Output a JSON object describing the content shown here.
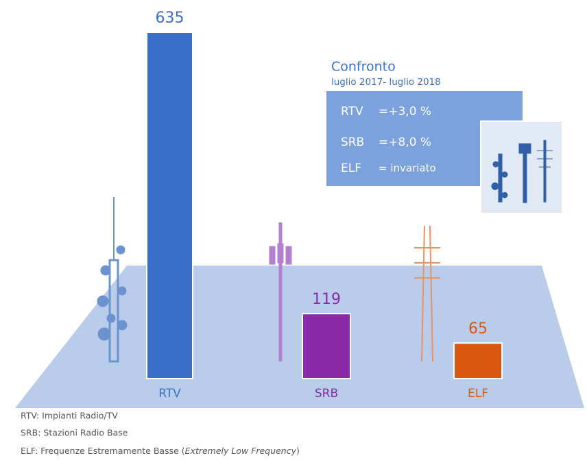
{
  "chart_data": {
    "type": "bar",
    "categories": [
      "RTV",
      "SRB",
      "ELF"
    ],
    "values": [
      635,
      119,
      65
    ],
    "colors": [
      "#3a6fc9",
      "#8a2aa8",
      "#d9560e"
    ]
  },
  "comparison": {
    "title": "Confronto",
    "subtitle": "luglio 2017- luglio 2018",
    "items": [
      {
        "label": "RTV",
        "value": "=+3,0 %"
      },
      {
        "label": "SRB",
        "value": "=+8,0 %"
      },
      {
        "label": "ELF",
        "value": "= invariato"
      }
    ]
  },
  "footnotes": [
    "RTV: Impianti Radio/TV",
    "SRB: Stazioni Radio Base",
    {
      "text": "ELF: Frequenze Estremamente Basse (",
      "italic": "Extremely Low Frequency",
      "end": ")"
    }
  ]
}
